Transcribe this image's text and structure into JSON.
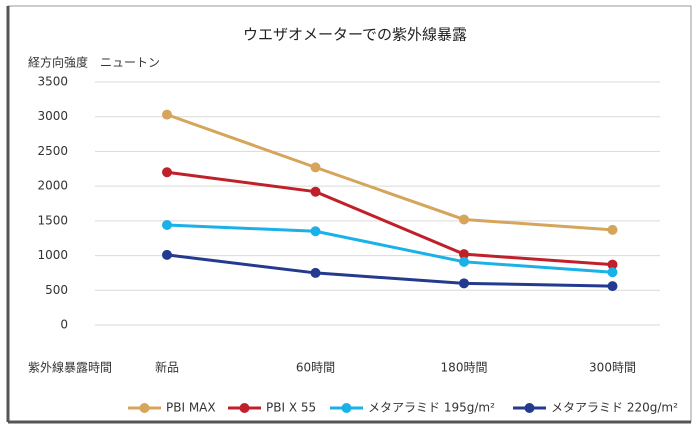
{
  "chart_data": {
    "type": "line",
    "title": "ウエザオメーターでの紫外線暴露",
    "y_label": "経方向強度　ニュートン",
    "x_label": "紫外線暴露時間",
    "categories": [
      "新品",
      "60時間",
      "180時間",
      "300時間"
    ],
    "series": [
      {
        "name": "PBI MAX",
        "color": "#d4a55a",
        "values": [
          3030,
          2270,
          1520,
          1370
        ]
      },
      {
        "name": "PBI X 55",
        "color": "#c0202a",
        "values": [
          2200,
          1920,
          1020,
          870
        ]
      },
      {
        "name": "メタアラミド 195g/m²",
        "color": "#1ab0e8",
        "values": [
          1440,
          1350,
          910,
          760
        ]
      },
      {
        "name": "メタアラミド 220g/m²",
        "color": "#233a8f",
        "values": [
          1010,
          750,
          600,
          560
        ]
      }
    ],
    "ylim": [
      0,
      3500
    ],
    "yticks": [
      0,
      500,
      1000,
      1500,
      2000,
      2500,
      3000,
      3500
    ],
    "grid": true,
    "legend": "bottom"
  }
}
